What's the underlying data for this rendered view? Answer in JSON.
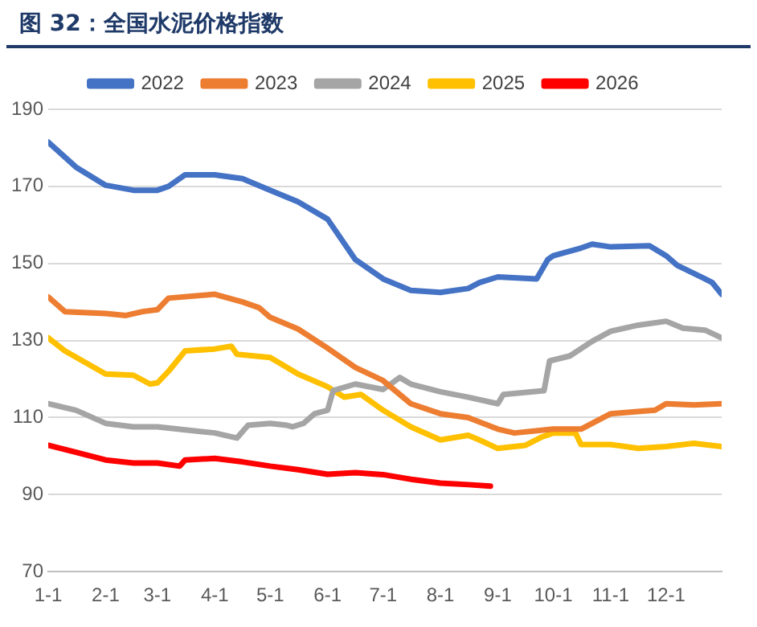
{
  "chart_data": {
    "type": "line",
    "title": "图 32：全国水泥价格指数",
    "xlim": [
      "--01-01",
      "--12-31"
    ],
    "xticks": [
      {
        "value": "--01-01",
        "label": "1-1"
      },
      {
        "value": "--02-01",
        "label": "2-1"
      },
      {
        "value": "--03-01",
        "label": "3-1"
      },
      {
        "value": "--04-01",
        "label": "4-1"
      },
      {
        "value": "--05-01",
        "label": "5-1"
      },
      {
        "value": "--06-01",
        "label": "6-1"
      },
      {
        "value": "--07-01",
        "label": "7-1"
      },
      {
        "value": "--08-01",
        "label": "8-1"
      },
      {
        "value": "--09-01",
        "label": "9-1"
      },
      {
        "value": "--10-01",
        "label": "10-1"
      },
      {
        "value": "--11-01",
        "label": "11-1"
      },
      {
        "value": "--12-01",
        "label": "12-1"
      }
    ],
    "ylim": [
      70,
      190
    ],
    "yticks": [
      70,
      90,
      110,
      130,
      150,
      170,
      190
    ],
    "grid": "y",
    "legend": "top",
    "marker": "none",
    "line_style": "solid",
    "series": [
      {
        "name": "2022",
        "color": "#4472c4",
        "x": [
          "--01-01",
          "--01-16",
          "--02-01",
          "--02-16",
          "--03-01",
          "--03-07",
          "--03-16",
          "--04-01",
          "--04-16",
          "--05-01",
          "--05-16",
          "--06-01",
          "--06-16",
          "--07-01",
          "--07-16",
          "--08-01",
          "--08-16",
          "--08-22",
          "--09-01",
          "--09-22",
          "--09-28",
          "--10-01",
          "--10-16",
          "--10-22",
          "--11-01",
          "--11-22",
          "--12-01",
          "--12-07",
          "--12-22",
          "--12-26",
          "--12-31"
        ],
        "values": [
          181.5,
          175,
          170.3,
          169,
          169,
          170,
          173,
          173,
          172,
          169,
          166,
          161.5,
          151,
          146,
          143,
          142.5,
          143.5,
          145,
          146.5,
          146,
          151,
          152,
          154,
          155,
          154.3,
          154.6,
          152,
          149.5,
          146,
          145,
          142
        ]
      },
      {
        "name": "2023",
        "color": "#ed7d31",
        "x": [
          "--01-01",
          "--01-10",
          "--02-01",
          "--02-12",
          "--02-21",
          "--03-01",
          "--03-07",
          "--04-01",
          "--04-16",
          "--04-25",
          "--05-01",
          "--05-16",
          "--06-01",
          "--06-16",
          "--07-01",
          "--07-16",
          "--08-01",
          "--08-16",
          "--09-01",
          "--09-10",
          "--10-01",
          "--10-16",
          "--11-01",
          "--11-25",
          "--12-01",
          "--12-16",
          "--12-31"
        ],
        "values": [
          141.3,
          137.5,
          137,
          136.5,
          137.5,
          138,
          141,
          142,
          140,
          138.5,
          136,
          133,
          128,
          123,
          119.6,
          113.6,
          111,
          110,
          107,
          106,
          107,
          107,
          111,
          111.9,
          113.6,
          113.3,
          113.6
        ]
      },
      {
        "name": "2024",
        "color": "#a5a5a5",
        "x": [
          "--01-01",
          "--01-16",
          "--02-01",
          "--02-16",
          "--03-01",
          "--03-16",
          "--04-01",
          "--04-10",
          "--04-13",
          "--04-19",
          "--05-01",
          "--05-10",
          "--05-13",
          "--05-19",
          "--05-25",
          "--06-01",
          "--06-04",
          "--06-16",
          "--07-01",
          "--07-10",
          "--07-16",
          "--08-01",
          "--08-16",
          "--09-01",
          "--09-04",
          "--09-26",
          "--09-29",
          "--10-10",
          "--10-22",
          "--11-01",
          "--11-16",
          "--12-01",
          "--12-10",
          "--12-22",
          "--12-31"
        ],
        "values": [
          113.6,
          111.9,
          108.5,
          107.6,
          107.6,
          106.8,
          106,
          105,
          104.7,
          108,
          108.5,
          108,
          107.6,
          108.5,
          111,
          111.9,
          117,
          118.7,
          117.3,
          120.4,
          118.7,
          116.7,
          115.3,
          113.6,
          116,
          117,
          124.7,
          126,
          129.8,
          132.4,
          134,
          135,
          133.2,
          132.7,
          130.7
        ]
      },
      {
        "name": "2025",
        "color": "#ffc000",
        "x": [
          "--01-01",
          "--01-10",
          "--02-01",
          "--02-16",
          "--02-25",
          "--03-01",
          "--03-07",
          "--03-16",
          "--04-01",
          "--04-10",
          "--04-13",
          "--05-01",
          "--05-16",
          "--06-01",
          "--06-10",
          "--06-19",
          "--07-01",
          "--07-16",
          "--08-01",
          "--08-16",
          "--08-22",
          "--09-01",
          "--09-16",
          "--09-25",
          "--10-01",
          "--10-13",
          "--10-16",
          "--11-01",
          "--11-16",
          "--12-01",
          "--12-16",
          "--12-31"
        ],
        "values": [
          130.7,
          127.3,
          121.3,
          121,
          118.7,
          119,
          122,
          127.3,
          127.8,
          128.5,
          126.4,
          125.6,
          121.3,
          118,
          115.3,
          116,
          111.9,
          107.6,
          104.2,
          105.4,
          104.2,
          102,
          102.8,
          105,
          106,
          106,
          103,
          103,
          102,
          102.5,
          103.3,
          102.5
        ]
      },
      {
        "name": "2026",
        "color": "#ff0000",
        "x": [
          "--01-01",
          "--01-16",
          "--02-01",
          "--02-16",
          "--03-01",
          "--03-13",
          "--03-16",
          "--04-01",
          "--04-16",
          "--05-01",
          "--05-16",
          "--06-01",
          "--06-16",
          "--07-01",
          "--07-16",
          "--08-01",
          "--08-16",
          "--08-28"
        ],
        "values": [
          102.8,
          101,
          99,
          98.2,
          98.2,
          97.4,
          99,
          99.4,
          98.5,
          97.4,
          96.5,
          95.3,
          95.7,
          95.2,
          94,
          93,
          92.6,
          92.2
        ]
      }
    ]
  }
}
